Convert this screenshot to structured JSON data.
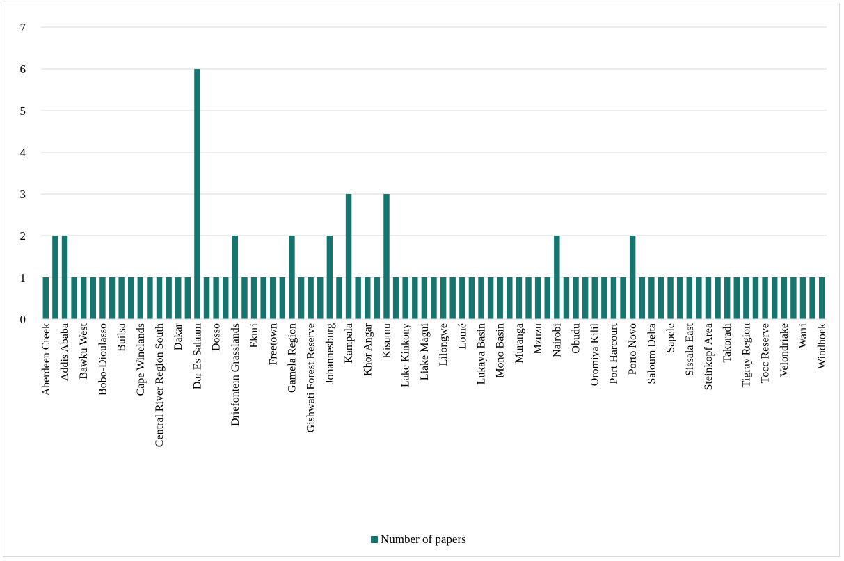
{
  "chart_data": {
    "type": "bar",
    "title": "",
    "xlabel": "",
    "ylabel": "",
    "ylim": [
      0,
      7
    ],
    "yticks": [
      0,
      1,
      2,
      3,
      4,
      5,
      6,
      7
    ],
    "grid": true,
    "legend_position": "bottom",
    "bar_color": "#17756F",
    "grid_color": "#d9d9d9",
    "categories": [
      "Aberdeen Creek",
      "",
      "Addis Ababa",
      "",
      "Bawku West",
      "",
      "Bobo-Dioulasso",
      "",
      "Builsa",
      "",
      "Cape Winelands",
      "",
      "Central River Region South",
      "",
      "Dakar",
      "",
      "Dar Es Salaam",
      "",
      "Dosso",
      "",
      "Driefontein Grasslands",
      "",
      "Ekuri",
      "",
      "Freetown",
      "",
      "Gamela Region",
      "",
      "Gishwati Forest Reserve",
      "",
      "Johannesburg",
      "",
      "Kampala",
      "",
      "Khor Angar",
      "",
      "Kisumu",
      "",
      "Lake Kinkony",
      "",
      "Liake Magui",
      "",
      "Lilongwe",
      "",
      "Lomé",
      "",
      "Lukaya Basin",
      "",
      "Mono Basin",
      "",
      "Muranga",
      "",
      "Mzuzu",
      "",
      "Nairobi",
      "",
      "Obudu",
      "",
      "Oromiya Kilil",
      "",
      "Port Harcourt",
      "",
      "Porto Novo",
      "",
      "Saloum Delta",
      "",
      "Sapele",
      "",
      "Sissala East",
      "",
      "Steinkopf Area",
      "",
      "Takoradi",
      "",
      "Tigray Region",
      "",
      "Tocc Reserve",
      "",
      "Velondriake",
      "",
      "Warri",
      "",
      "Windhoek"
    ],
    "series": [
      {
        "name": "Number of papers",
        "values": [
          1,
          2,
          2,
          1,
          1,
          1,
          1,
          1,
          1,
          1,
          1,
          1,
          1,
          1,
          1,
          1,
          6,
          1,
          1,
          1,
          2,
          1,
          1,
          1,
          1,
          1,
          2,
          1,
          1,
          1,
          2,
          1,
          3,
          1,
          1,
          1,
          3,
          1,
          1,
          1,
          1,
          1,
          1,
          1,
          1,
          1,
          1,
          1,
          1,
          1,
          1,
          1,
          1,
          1,
          2,
          1,
          1,
          1,
          1,
          1,
          1,
          1,
          2,
          1,
          1,
          1,
          1,
          1,
          1,
          1,
          1,
          1,
          1,
          1,
          1,
          1,
          1,
          1,
          1,
          1,
          1,
          1,
          1
        ]
      }
    ]
  }
}
